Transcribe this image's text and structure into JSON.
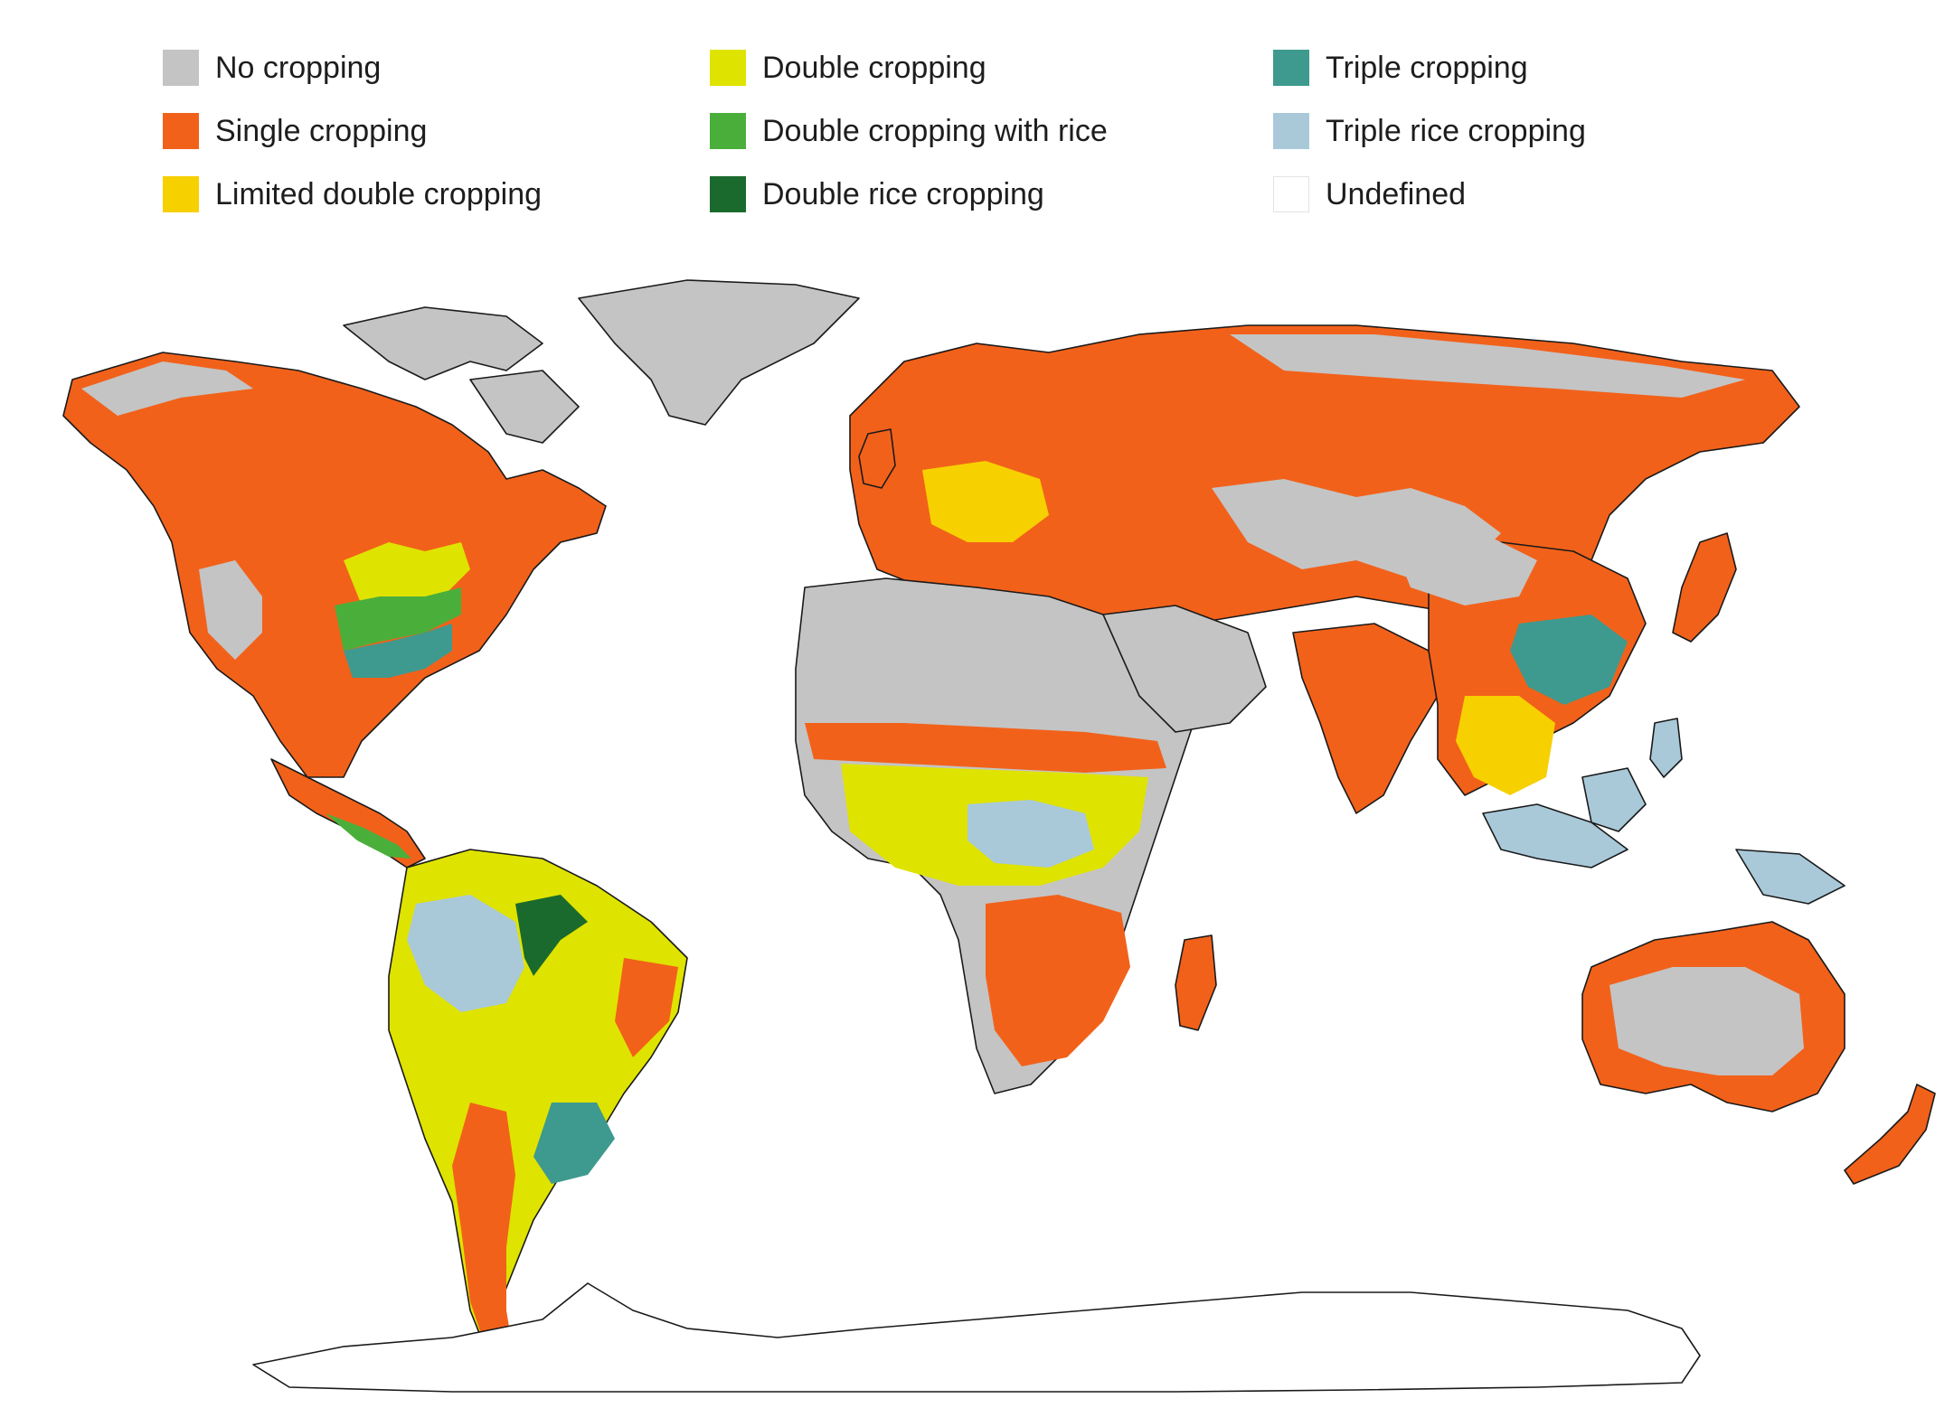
{
  "legend": {
    "items": [
      {
        "key": "no_cropping",
        "label": "No cropping",
        "color": "#c4c4c4"
      },
      {
        "key": "single_cropping",
        "label": "Single cropping",
        "color": "#f2611a"
      },
      {
        "key": "limited_double_cropping",
        "label": "Limited double cropping",
        "color": "#f7d000"
      },
      {
        "key": "double_cropping",
        "label": "Double cropping",
        "color": "#dfe300"
      },
      {
        "key": "double_cropping_rice",
        "label": "Double cropping with rice",
        "color": "#4aaf3a"
      },
      {
        "key": "double_rice_cropping",
        "label": "Double rice cropping",
        "color": "#1b6a2d"
      },
      {
        "key": "triple_cropping",
        "label": "Triple cropping",
        "color": "#3e9a8e"
      },
      {
        "key": "triple_rice_cropping",
        "label": "Triple rice cropping",
        "color": "#a9c9d9"
      },
      {
        "key": "undefined",
        "label": "Undefined",
        "color": "#ffffff"
      }
    ]
  },
  "map": {
    "projection": "world-robinson",
    "regions": [
      {
        "name": "north-america",
        "primary": "single_cropping"
      },
      {
        "name": "greenland",
        "primary": "no_cropping"
      },
      {
        "name": "south-america",
        "primary": "double_cropping"
      },
      {
        "name": "europe-russia",
        "primary": "single_cropping"
      },
      {
        "name": "africa",
        "primary": "no_cropping"
      },
      {
        "name": "asia",
        "primary": "single_cropping"
      },
      {
        "name": "australia",
        "primary": "no_cropping"
      },
      {
        "name": "antarctica",
        "primary": "undefined"
      }
    ]
  }
}
